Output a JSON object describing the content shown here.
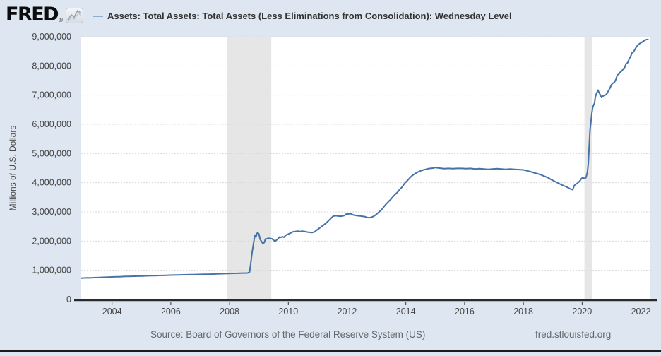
{
  "header": {
    "logo_text": "FRED",
    "registered_mark": "®",
    "legend_dash": "—",
    "series_label": "Assets: Total Assets: Total Assets (Less Eliminations from Consolidation): Wednesday Level"
  },
  "footer": {
    "source_text": "Source: Board of Governors of the Federal Reserve System (US)",
    "site_text": "fred.stlouisfed.org"
  },
  "colors": {
    "page_bg": "#dee7f1",
    "plot_bg": "#ffffff",
    "line": "#4572a7",
    "recession_band": "#e6e6e6",
    "gridline": "#d9d9d9",
    "axis_line": "#2b2b2b",
    "tick_label": "#444444",
    "axis_title": "#4a4a4a",
    "footer_text": "#66696c",
    "bottom_bar": "#1d1d1d"
  },
  "chart_data": {
    "type": "line",
    "title": "",
    "xlabel": "",
    "ylabel": "Millions of U.S. Dollars",
    "xlim": [
      2002.95,
      2022.3
    ],
    "ylim": [
      0,
      9000000
    ],
    "x_ticks": [
      2004,
      2006,
      2008,
      2010,
      2012,
      2014,
      2016,
      2018,
      2020,
      2022
    ],
    "y_ticks": [
      0,
      1000000,
      2000000,
      3000000,
      4000000,
      5000000,
      6000000,
      7000000,
      8000000,
      9000000
    ],
    "grid": true,
    "legend_position": "top-left",
    "recession_bands": [
      [
        2007.92,
        2009.42
      ],
      [
        2020.08,
        2020.33
      ]
    ],
    "series": [
      {
        "name": "Assets: Total Assets: Total Assets (Less Eliminations from Consolidation): Wednesday Level",
        "color": "#4572a7",
        "points": [
          [
            2002.95,
            732000
          ],
          [
            2003.05,
            738000
          ],
          [
            2003.15,
            742000
          ],
          [
            2003.25,
            740000
          ],
          [
            2003.35,
            748000
          ],
          [
            2003.45,
            752000
          ],
          [
            2003.55,
            756000
          ],
          [
            2003.65,
            760000
          ],
          [
            2003.75,
            764000
          ],
          [
            2003.85,
            768000
          ],
          [
            2003.95,
            772000
          ],
          [
            2004.05,
            776000
          ],
          [
            2004.15,
            778000
          ],
          [
            2004.25,
            782000
          ],
          [
            2004.35,
            786000
          ],
          [
            2004.45,
            790000
          ],
          [
            2004.55,
            792000
          ],
          [
            2004.65,
            796000
          ],
          [
            2004.75,
            798000
          ],
          [
            2004.85,
            800000
          ],
          [
            2004.95,
            804000
          ],
          [
            2005.05,
            806000
          ],
          [
            2005.15,
            810000
          ],
          [
            2005.25,
            812000
          ],
          [
            2005.35,
            816000
          ],
          [
            2005.45,
            818000
          ],
          [
            2005.55,
            820000
          ],
          [
            2005.65,
            824000
          ],
          [
            2005.75,
            826000
          ],
          [
            2005.85,
            830000
          ],
          [
            2005.95,
            834000
          ],
          [
            2006.05,
            836000
          ],
          [
            2006.15,
            838000
          ],
          [
            2006.25,
            842000
          ],
          [
            2006.35,
            844000
          ],
          [
            2006.45,
            846000
          ],
          [
            2006.55,
            850000
          ],
          [
            2006.65,
            852000
          ],
          [
            2006.75,
            854000
          ],
          [
            2006.85,
            856000
          ],
          [
            2006.95,
            860000
          ],
          [
            2007.05,
            862000
          ],
          [
            2007.15,
            864000
          ],
          [
            2007.25,
            866000
          ],
          [
            2007.35,
            868000
          ],
          [
            2007.45,
            872000
          ],
          [
            2007.55,
            876000
          ],
          [
            2007.65,
            880000
          ],
          [
            2007.75,
            884000
          ],
          [
            2007.85,
            886000
          ],
          [
            2007.95,
            890000
          ],
          [
            2008.05,
            892000
          ],
          [
            2008.15,
            896000
          ],
          [
            2008.25,
            898000
          ],
          [
            2008.35,
            902000
          ],
          [
            2008.45,
            906000
          ],
          [
            2008.55,
            904000
          ],
          [
            2008.62,
            910000
          ],
          [
            2008.68,
            940000
          ],
          [
            2008.72,
            1220000
          ],
          [
            2008.76,
            1560000
          ],
          [
            2008.8,
            1830000
          ],
          [
            2008.84,
            2080000
          ],
          [
            2008.87,
            2210000
          ],
          [
            2008.9,
            2140000
          ],
          [
            2008.93,
            2260000
          ],
          [
            2008.96,
            2290000
          ],
          [
            2009.0,
            2240000
          ],
          [
            2009.04,
            2060000
          ],
          [
            2009.08,
            2000000
          ],
          [
            2009.13,
            1920000
          ],
          [
            2009.18,
            1950000
          ],
          [
            2009.22,
            2070000
          ],
          [
            2009.27,
            2080000
          ],
          [
            2009.32,
            2100000
          ],
          [
            2009.38,
            2090000
          ],
          [
            2009.44,
            2080000
          ],
          [
            2009.5,
            2030000
          ],
          [
            2009.55,
            1990000
          ],
          [
            2009.6,
            2040000
          ],
          [
            2009.65,
            2080000
          ],
          [
            2009.7,
            2140000
          ],
          [
            2009.75,
            2130000
          ],
          [
            2009.8,
            2150000
          ],
          [
            2009.85,
            2130000
          ],
          [
            2009.9,
            2190000
          ],
          [
            2009.95,
            2220000
          ],
          [
            2010.0,
            2240000
          ],
          [
            2010.08,
            2280000
          ],
          [
            2010.16,
            2320000
          ],
          [
            2010.24,
            2330000
          ],
          [
            2010.32,
            2340000
          ],
          [
            2010.4,
            2330000
          ],
          [
            2010.48,
            2340000
          ],
          [
            2010.56,
            2330000
          ],
          [
            2010.64,
            2310000
          ],
          [
            2010.72,
            2300000
          ],
          [
            2010.8,
            2290000
          ],
          [
            2010.88,
            2310000
          ],
          [
            2010.96,
            2370000
          ],
          [
            2011.04,
            2430000
          ],
          [
            2011.12,
            2490000
          ],
          [
            2011.2,
            2550000
          ],
          [
            2011.28,
            2610000
          ],
          [
            2011.36,
            2690000
          ],
          [
            2011.44,
            2770000
          ],
          [
            2011.52,
            2850000
          ],
          [
            2011.6,
            2870000
          ],
          [
            2011.68,
            2860000
          ],
          [
            2011.76,
            2850000
          ],
          [
            2011.84,
            2860000
          ],
          [
            2011.92,
            2880000
          ],
          [
            2011.96,
            2920000
          ],
          [
            2012.04,
            2930000
          ],
          [
            2012.12,
            2940000
          ],
          [
            2012.2,
            2900000
          ],
          [
            2012.28,
            2880000
          ],
          [
            2012.36,
            2870000
          ],
          [
            2012.44,
            2860000
          ],
          [
            2012.52,
            2850000
          ],
          [
            2012.6,
            2840000
          ],
          [
            2012.68,
            2810000
          ],
          [
            2012.76,
            2800000
          ],
          [
            2012.84,
            2820000
          ],
          [
            2012.92,
            2860000
          ],
          [
            2013.0,
            2920000
          ],
          [
            2013.08,
            2990000
          ],
          [
            2013.16,
            3060000
          ],
          [
            2013.24,
            3160000
          ],
          [
            2013.32,
            3260000
          ],
          [
            2013.4,
            3340000
          ],
          [
            2013.48,
            3420000
          ],
          [
            2013.56,
            3520000
          ],
          [
            2013.64,
            3600000
          ],
          [
            2013.72,
            3680000
          ],
          [
            2013.8,
            3780000
          ],
          [
            2013.88,
            3860000
          ],
          [
            2013.96,
            3980000
          ],
          [
            2014.04,
            4060000
          ],
          [
            2014.12,
            4150000
          ],
          [
            2014.2,
            4230000
          ],
          [
            2014.28,
            4290000
          ],
          [
            2014.36,
            4340000
          ],
          [
            2014.44,
            4380000
          ],
          [
            2014.52,
            4410000
          ],
          [
            2014.6,
            4440000
          ],
          [
            2014.68,
            4460000
          ],
          [
            2014.76,
            4480000
          ],
          [
            2014.84,
            4490000
          ],
          [
            2014.92,
            4500000
          ],
          [
            2015.0,
            4520000
          ],
          [
            2015.15,
            4500000
          ],
          [
            2015.3,
            4480000
          ],
          [
            2015.45,
            4490000
          ],
          [
            2015.6,
            4480000
          ],
          [
            2015.75,
            4490000
          ],
          [
            2015.9,
            4490000
          ],
          [
            2016.05,
            4480000
          ],
          [
            2016.2,
            4490000
          ],
          [
            2016.35,
            4470000
          ],
          [
            2016.5,
            4480000
          ],
          [
            2016.65,
            4470000
          ],
          [
            2016.8,
            4460000
          ],
          [
            2016.95,
            4470000
          ],
          [
            2017.1,
            4480000
          ],
          [
            2017.25,
            4470000
          ],
          [
            2017.4,
            4460000
          ],
          [
            2017.55,
            4470000
          ],
          [
            2017.7,
            4460000
          ],
          [
            2017.85,
            4450000
          ],
          [
            2018.0,
            4440000
          ],
          [
            2018.12,
            4410000
          ],
          [
            2018.24,
            4380000
          ],
          [
            2018.36,
            4340000
          ],
          [
            2018.48,
            4310000
          ],
          [
            2018.6,
            4270000
          ],
          [
            2018.72,
            4220000
          ],
          [
            2018.84,
            4170000
          ],
          [
            2018.96,
            4100000
          ],
          [
            2019.08,
            4040000
          ],
          [
            2019.2,
            3980000
          ],
          [
            2019.32,
            3920000
          ],
          [
            2019.44,
            3870000
          ],
          [
            2019.54,
            3820000
          ],
          [
            2019.62,
            3780000
          ],
          [
            2019.68,
            3760000
          ],
          [
            2019.73,
            3900000
          ],
          [
            2019.78,
            3950000
          ],
          [
            2019.83,
            3970000
          ],
          [
            2019.88,
            4020000
          ],
          [
            2019.93,
            4070000
          ],
          [
            2019.98,
            4150000
          ],
          [
            2020.03,
            4170000
          ],
          [
            2020.08,
            4150000
          ],
          [
            2020.13,
            4170000
          ],
          [
            2020.18,
            4360000
          ],
          [
            2020.21,
            4670000
          ],
          [
            2020.24,
            5250000
          ],
          [
            2020.27,
            5810000
          ],
          [
            2020.3,
            6080000
          ],
          [
            2020.33,
            6370000
          ],
          [
            2020.36,
            6570000
          ],
          [
            2020.39,
            6660000
          ],
          [
            2020.42,
            6720000
          ],
          [
            2020.45,
            6930000
          ],
          [
            2020.48,
            7040000
          ],
          [
            2020.51,
            7100000
          ],
          [
            2020.54,
            7170000
          ],
          [
            2020.58,
            7080000
          ],
          [
            2020.62,
            7010000
          ],
          [
            2020.66,
            6920000
          ],
          [
            2020.7,
            6960000
          ],
          [
            2020.75,
            6990000
          ],
          [
            2020.8,
            7010000
          ],
          [
            2020.85,
            7060000
          ],
          [
            2020.9,
            7160000
          ],
          [
            2020.95,
            7240000
          ],
          [
            2021.0,
            7360000
          ],
          [
            2021.05,
            7410000
          ],
          [
            2021.1,
            7440000
          ],
          [
            2021.15,
            7540000
          ],
          [
            2021.2,
            7690000
          ],
          [
            2021.25,
            7720000
          ],
          [
            2021.3,
            7790000
          ],
          [
            2021.35,
            7830000
          ],
          [
            2021.4,
            7900000
          ],
          [
            2021.45,
            7950000
          ],
          [
            2021.5,
            8080000
          ],
          [
            2021.55,
            8110000
          ],
          [
            2021.6,
            8240000
          ],
          [
            2021.65,
            8330000
          ],
          [
            2021.7,
            8450000
          ],
          [
            2021.75,
            8480000
          ],
          [
            2021.8,
            8570000
          ],
          [
            2021.85,
            8660000
          ],
          [
            2021.9,
            8720000
          ],
          [
            2021.95,
            8760000
          ],
          [
            2022.0,
            8790000
          ],
          [
            2022.06,
            8830000
          ],
          [
            2022.12,
            8870000
          ],
          [
            2022.18,
            8900000
          ],
          [
            2022.24,
            8910000
          ]
        ]
      }
    ]
  }
}
